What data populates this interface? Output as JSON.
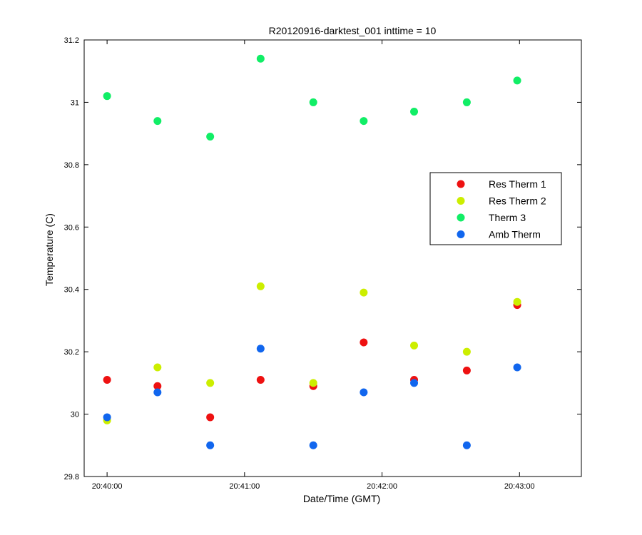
{
  "chart_data": {
    "type": "scatter",
    "title": "R20120916-darktest_001 inttime = 10",
    "xlabel": "Date/Time (GMT)",
    "ylabel": "Temperature (C)",
    "xlim": [
      "20:39:50",
      "20:43:27"
    ],
    "ylim": [
      29.8,
      31.2
    ],
    "xticks": [
      "20:40:00",
      "20:41:00",
      "20:42:00",
      "20:43:00"
    ],
    "yticks": [
      "29.8",
      "30",
      "30.2",
      "30.4",
      "30.6",
      "30.8",
      "31",
      "31.2"
    ],
    "grid": false,
    "legend_position": "right",
    "x": [
      "20:40:00",
      "20:40:22",
      "20:40:45",
      "20:41:07",
      "20:41:30",
      "20:41:52",
      "20:42:14",
      "20:42:37",
      "20:42:59"
    ],
    "series": [
      {
        "name": "Res Therm 1",
        "color": "#ee1111",
        "values": [
          30.11,
          30.09,
          29.99,
          30.11,
          30.09,
          30.23,
          30.11,
          30.14,
          30.35
        ]
      },
      {
        "name": "Res Therm 2",
        "color": "#ccee00",
        "values": [
          29.98,
          30.15,
          30.1,
          30.41,
          30.1,
          30.39,
          30.22,
          30.2,
          30.36
        ]
      },
      {
        "name": "Therm 3",
        "color": "#11ee66",
        "values": [
          31.02,
          30.94,
          30.89,
          31.14,
          31.0,
          30.94,
          30.97,
          31.0,
          31.07
        ]
      },
      {
        "name": "Amb Therm",
        "color": "#1166ee",
        "values": [
          29.99,
          30.07,
          29.9,
          30.21,
          29.9,
          30.07,
          30.1,
          29.9,
          30.15
        ]
      }
    ]
  }
}
